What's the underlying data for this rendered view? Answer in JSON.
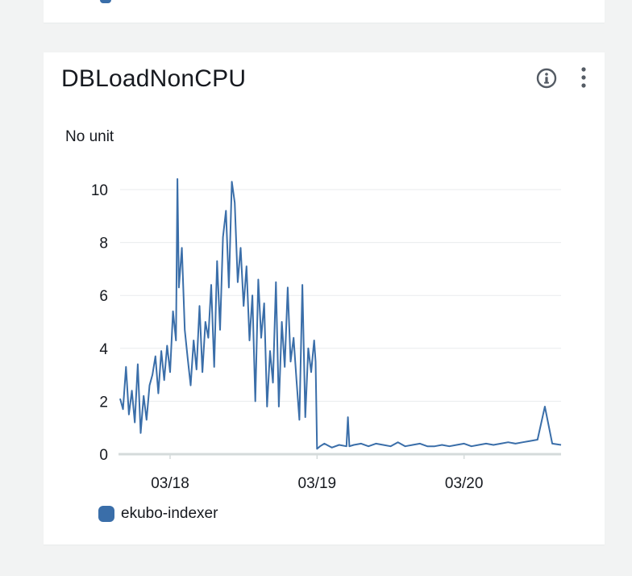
{
  "widget": {
    "title": "DBLoadNonCPU",
    "info_icon": "info-circle-icon",
    "menu_icon": "vertical-ellipsis-icon"
  },
  "colors": {
    "series": "#3a6ea9",
    "grid": "#e9ebed",
    "axis": "#d5dbdb",
    "text": "#16191f"
  },
  "chart_data": {
    "type": "line",
    "title": "DBLoadNonCPU",
    "ylabel": "No unit",
    "xlabel": "",
    "ylim": [
      0,
      10
    ],
    "yticks": [
      {
        "value": 0,
        "label": "0"
      },
      {
        "value": 2,
        "label": "2"
      },
      {
        "value": 4,
        "label": "4"
      },
      {
        "value": 6,
        "label": "6"
      },
      {
        "value": 8,
        "label": "8"
      },
      {
        "value": 10,
        "label": "10"
      }
    ],
    "xlim": [
      -0.34,
      2.66
    ],
    "xticks": [
      {
        "value": 0,
        "label": "03/18"
      },
      {
        "value": 1,
        "label": "03/19"
      },
      {
        "value": 2,
        "label": "03/20"
      }
    ],
    "grid": true,
    "legend_position": "bottom-left",
    "series": [
      {
        "name": "ekubo-indexer",
        "x": [
          -0.34,
          -0.32,
          -0.3,
          -0.28,
          -0.26,
          -0.24,
          -0.22,
          -0.2,
          -0.18,
          -0.16,
          -0.14,
          -0.12,
          -0.1,
          -0.08,
          -0.06,
          -0.04,
          -0.02,
          0.0,
          0.02,
          0.04,
          0.05,
          0.06,
          0.08,
          0.1,
          0.12,
          0.14,
          0.16,
          0.18,
          0.2,
          0.22,
          0.24,
          0.26,
          0.28,
          0.3,
          0.32,
          0.34,
          0.36,
          0.38,
          0.4,
          0.42,
          0.44,
          0.46,
          0.48,
          0.5,
          0.52,
          0.54,
          0.56,
          0.58,
          0.6,
          0.62,
          0.64,
          0.66,
          0.68,
          0.7,
          0.72,
          0.74,
          0.76,
          0.78,
          0.8,
          0.82,
          0.84,
          0.86,
          0.88,
          0.9,
          0.92,
          0.94,
          0.96,
          0.98,
          0.99,
          1.0,
          1.02,
          1.05,
          1.1,
          1.15,
          1.2,
          1.21,
          1.22,
          1.25,
          1.3,
          1.35,
          1.4,
          1.45,
          1.5,
          1.55,
          1.6,
          1.65,
          1.7,
          1.75,
          1.8,
          1.85,
          1.9,
          1.95,
          2.0,
          2.05,
          2.1,
          2.15,
          2.2,
          2.25,
          2.3,
          2.35,
          2.4,
          2.45,
          2.5,
          2.55,
          2.6,
          2.66
        ],
        "y": [
          2.1,
          1.7,
          3.3,
          1.5,
          2.4,
          1.2,
          3.4,
          0.8,
          2.2,
          1.3,
          2.6,
          3.0,
          3.7,
          2.3,
          3.9,
          2.8,
          4.1,
          3.1,
          5.4,
          4.3,
          10.4,
          6.3,
          7.8,
          4.7,
          3.6,
          2.6,
          4.3,
          3.2,
          5.6,
          3.1,
          5.0,
          4.4,
          6.4,
          3.3,
          7.3,
          4.7,
          8.2,
          9.2,
          6.3,
          10.3,
          9.5,
          6.5,
          7.8,
          5.6,
          7.1,
          4.3,
          6.0,
          2.0,
          6.6,
          4.4,
          5.7,
          1.8,
          3.9,
          2.7,
          6.5,
          1.8,
          5.0,
          3.3,
          6.3,
          3.5,
          4.4,
          2.8,
          1.3,
          6.4,
          1.4,
          4.0,
          3.1,
          4.3,
          3.5,
          0.2,
          0.3,
          0.4,
          0.25,
          0.35,
          0.3,
          1.4,
          0.3,
          0.35,
          0.4,
          0.3,
          0.4,
          0.35,
          0.3,
          0.45,
          0.3,
          0.35,
          0.4,
          0.3,
          0.3,
          0.35,
          0.3,
          0.35,
          0.4,
          0.3,
          0.35,
          0.4,
          0.35,
          0.4,
          0.45,
          0.4,
          0.45,
          0.5,
          0.55,
          1.8,
          0.4,
          0.35
        ],
        "color": "#3a6ea9"
      }
    ]
  }
}
